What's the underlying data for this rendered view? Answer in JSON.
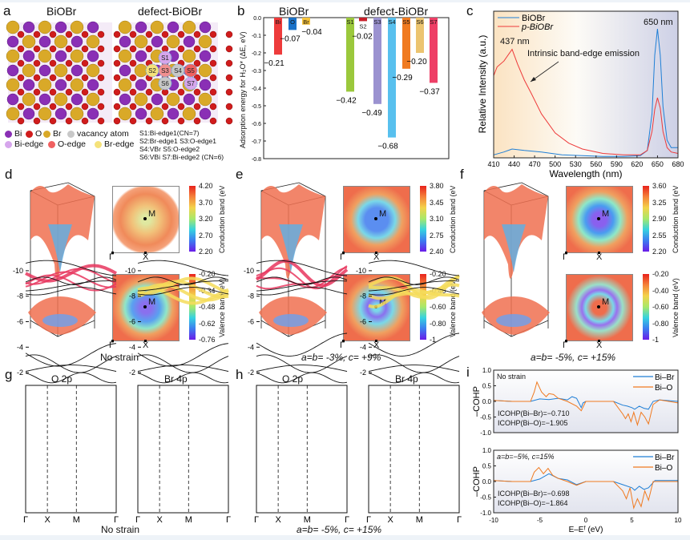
{
  "panels": {
    "a": {
      "label": "a",
      "title_left": "BiOBr",
      "title_right": "defect-BiOBr",
      "site_labels": [
        "S1",
        "S2",
        "S3",
        "S4",
        "S5",
        "S6",
        "S7"
      ],
      "legend": [
        {
          "name": "Bi",
          "color": "#8a2fb5"
        },
        {
          "name": "O",
          "color": "#d01c1c"
        },
        {
          "name": "Br",
          "color": "#d9a928"
        },
        {
          "name": "vacancy atom",
          "color": "#c8c8c8"
        },
        {
          "name": "Bi-edge",
          "color": "#d6a6ec"
        },
        {
          "name": "O-edge",
          "color": "#f06060"
        },
        {
          "name": "Br-edge",
          "color": "#f5e27a"
        }
      ],
      "site_notes": [
        "S1:Bi-edge1(CN=7)",
        "S2:Br-edge1 S3:O-edge1",
        "S4:VBr S5:O-edge2",
        "S6:VBi S7:Bi-edge2 (CN=6)"
      ]
    },
    "b": {
      "label": "b",
      "group_left": "BiOBr",
      "group_right": "defect-BiOBr",
      "ylabel": "Adsorption energy for H₂O* (ΔE, eV)"
    },
    "c": {
      "label": "c",
      "ann_437": "437 nm",
      "ann_650": "650 nm",
      "ann_emission": "Intrinsic band-edge emission"
    },
    "d": {
      "label": "d",
      "caption": "No strain",
      "cb_ticks": [
        "4.20",
        "3.70",
        "3.20",
        "2.70",
        "2.20"
      ],
      "vb_ticks": [
        "-0.20",
        "-0.34",
        "-0.48",
        "-0.62",
        "-0.76"
      ]
    },
    "e": {
      "label": "e",
      "caption": "a=b= -3%, c= +9%",
      "cb_ticks": [
        "3.80",
        "3.45",
        "3.10",
        "2.75",
        "2.40"
      ],
      "vb_ticks": [
        "-0.20",
        "-0.40",
        "-0.60",
        "-0.80",
        "-1"
      ]
    },
    "f": {
      "label": "f",
      "caption": "a=b= -5%, c= +15%",
      "cb_ticks": [
        "3.60",
        "3.25",
        "2.90",
        "2.55",
        "2.20"
      ],
      "vb_ticks": [
        "-0.20",
        "-0.40",
        "-0.60",
        "-0.80",
        "-1"
      ]
    },
    "map_common": {
      "cb_label": "Conduction band (eV)",
      "vb_label": "Valence band (eV)",
      "point_M": "M",
      "point_G": "Γ",
      "point_X": "X"
    },
    "g": {
      "label": "g",
      "caption": "No strain",
      "title_left": "O 2p",
      "title_right": "Br 4p"
    },
    "h": {
      "label": "h",
      "caption": "a=b= -5%, c= +15%",
      "title_left": "O 2p",
      "title_right": "Br 4p"
    },
    "bands_common": {
      "yticks": [
        "-2",
        "-4",
        "-6",
        "-8",
        "-10"
      ],
      "kpoints": [
        "Γ",
        "X",
        "M",
        "Γ"
      ],
      "o_color": "#e8365e",
      "br_color": "#f5dc5a"
    },
    "i": {
      "label": "i",
      "top_note": "No strain",
      "bottom_note": "a=b=−5%, c=15%",
      "top_icohp": [
        "ICOHP(Bi–Br)=−0.710",
        "ICOHP(Bi–O)=−1.905"
      ],
      "bottom_icohp": [
        "ICOHP(Bi–Br)=−0.698",
        "ICOHP(Bi–O)=−1.864"
      ]
    }
  },
  "chart_data": [
    {
      "id": "b",
      "type": "bar",
      "ylabel": "Adsorption energy for H₂O* (ΔE, eV)",
      "ylim": [
        -0.8,
        0.0
      ],
      "yticks": [
        "0.0",
        "-0.1",
        "-0.2",
        "-0.3",
        "-0.4",
        "-0.5",
        "-0.6",
        "-0.7",
        "-0.8"
      ],
      "categories": [
        "Bi",
        "O",
        "Br",
        "S1",
        "S2",
        "S3",
        "S4",
        "S5",
        "S6",
        "S7"
      ],
      "values": [
        -0.21,
        -0.07,
        -0.04,
        -0.42,
        -0.02,
        -0.49,
        -0.68,
        -0.29,
        -0.2,
        -0.37
      ],
      "value_labels": [
        "−0.21",
        "−0.07",
        "−0.04",
        "−0.42",
        "−0.02",
        "−0.49",
        "−0.68",
        "−0.29",
        "−0.20",
        "−0.37"
      ],
      "colors": [
        "#ee3b3b",
        "#1a72c8",
        "#f5c23a",
        "#9bc83c",
        "#c8202a",
        "#9b92d0",
        "#58c0ee",
        "#f07a20",
        "#ecc470",
        "#ee3f66"
      ]
    },
    {
      "id": "c",
      "type": "line",
      "xlabel": "Wavelength (nm)",
      "ylabel": "Relative Intensity (a.u.)",
      "xlim": [
        410,
        680
      ],
      "ylim": [
        0,
        1
      ],
      "xticks": [
        "410",
        "440",
        "470",
        "500",
        "530",
        "560",
        "590",
        "620",
        "650",
        "680"
      ],
      "legend_position": "top-left",
      "series": [
        {
          "name": "BiOBr",
          "color": "#1f7fd6",
          "x": [
            410,
            425,
            437,
            455,
            480,
            510,
            540,
            570,
            600,
            625,
            635,
            642,
            646,
            650,
            654,
            658,
            664,
            670,
            680
          ],
          "y": [
            0.02,
            0.04,
            0.06,
            0.05,
            0.04,
            0.02,
            0.015,
            0.01,
            0.01,
            0.015,
            0.05,
            0.3,
            0.7,
            0.88,
            0.7,
            0.35,
            0.12,
            0.07,
            0.07
          ]
        },
        {
          "name": "p-BiOBr",
          "color": "#ee3a3a",
          "x": [
            410,
            415,
            425,
            437,
            445,
            455,
            465,
            480,
            500,
            520,
            540,
            570,
            600,
            625,
            635,
            642,
            646,
            650,
            654,
            658,
            664,
            670,
            680
          ],
          "y": [
            0.56,
            0.62,
            0.66,
            0.74,
            0.64,
            0.53,
            0.44,
            0.3,
            0.17,
            0.1,
            0.06,
            0.03,
            0.02,
            0.02,
            0.05,
            0.18,
            0.33,
            0.41,
            0.34,
            0.18,
            0.07,
            0.04,
            0.03
          ]
        }
      ]
    },
    {
      "id": "i",
      "type": "line",
      "xlabel": "E–Eᶠ (eV)",
      "ylabel": "–COHP",
      "xlim": [
        -10,
        10
      ],
      "ylim": [
        -1.0,
        1.0
      ],
      "xticks": [
        "-10",
        "-5",
        "0",
        "5",
        "10"
      ],
      "yticks": [
        "1.0",
        "0.5",
        "0.0",
        "-0.5",
        "-1.0"
      ],
      "legend_position": "top-right",
      "subplots": [
        {
          "series": [
            {
              "name": "Bi–Br",
              "color": "#1f7fd6",
              "x": [
                -10,
                -8,
                -6,
                -5,
                -4,
                -3,
                -2,
                -1.5,
                -1,
                -0.5,
                -0.3,
                0,
                3,
                4,
                4.5,
                5,
                5.3,
                5.8,
                6.3,
                6.8,
                7.3,
                8,
                10
              ],
              "y": [
                0.03,
                0,
                0,
                0.08,
                0.06,
                0.1,
                0.05,
                0.15,
                0.1,
                -0.2,
                -0.05,
                0,
                0,
                -0.12,
                -0.15,
                -0.2,
                -0.25,
                -0.15,
                -0.22,
                -0.25,
                0,
                0.05,
                0
              ]
            },
            {
              "name": "Bi–O",
              "color": "#f07a20",
              "x": [
                -10,
                -8,
                -6,
                -5.6,
                -5.3,
                -4.8,
                -4.3,
                -4,
                -3.5,
                -3,
                -2,
                -1,
                -0.5,
                0,
                3,
                4,
                4.3,
                4.6,
                4.9,
                5.2,
                5.6,
                6,
                6.4,
                6.8,
                7.3,
                8,
                10
              ],
              "y": [
                0.03,
                0,
                0,
                0.3,
                0.62,
                0.3,
                0.15,
                0.25,
                0.22,
                0.1,
                0,
                -0.15,
                -0.3,
                0,
                0,
                -0.4,
                -0.55,
                -0.4,
                -0.65,
                -0.35,
                -0.75,
                -0.35,
                -0.5,
                -0.72,
                -0.1,
                0.05,
                -0.05
              ]
            }
          ]
        },
        {
          "series": [
            {
              "name": "Bi–Br",
              "color": "#1f7fd6",
              "x": [
                -10,
                -8,
                -6,
                -5,
                -4,
                -3,
                -2,
                -1,
                0,
                3,
                4,
                5,
                5.3,
                5.8,
                6.3,
                6.8,
                7.5,
                10
              ],
              "y": [
                0.03,
                0,
                0,
                0.08,
                0.25,
                0.1,
                0.05,
                -0.1,
                0,
                0,
                -0.1,
                -0.2,
                -0.28,
                -0.15,
                -0.25,
                -0.2,
                0.03,
                0.03
              ]
            },
            {
              "name": "Bi–O",
              "color": "#f07a20",
              "x": [
                -10,
                -8,
                -6,
                -5.6,
                -5.1,
                -4.6,
                -4.1,
                -3.6,
                -3,
                -2,
                -1,
                0,
                3,
                4,
                4.4,
                4.8,
                5.2,
                5.6,
                6,
                6.4,
                6.8,
                7.3,
                10
              ],
              "y": [
                0.03,
                0,
                0,
                0.3,
                0.45,
                0.25,
                0.42,
                0.2,
                0.1,
                0,
                -0.12,
                0,
                0,
                -0.3,
                -0.55,
                -0.2,
                -0.85,
                -0.55,
                -0.8,
                -0.3,
                -0.6,
                0,
                0
              ]
            }
          ]
        }
      ]
    }
  ]
}
